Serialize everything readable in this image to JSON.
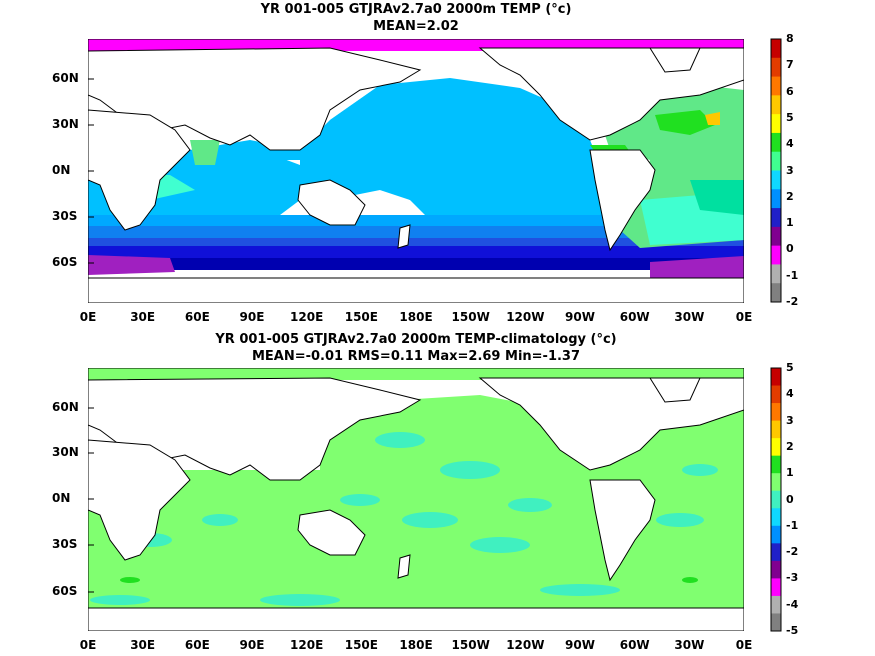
{
  "panels": [
    {
      "title_line1": "YR 001-005 GTJRAv2.7a0 2000m TEMP (°c)",
      "title_line2": "MEAN=2.02",
      "colorbar_labels": [
        "8",
        "7",
        "6",
        "5",
        "4",
        "3",
        "2",
        "1",
        "0",
        "-1",
        "-2"
      ],
      "colorbar_colors": [
        "#c60000",
        "#e23c00",
        "#ff7800",
        "#ffc800",
        "#ffff00",
        "#20e020",
        "#40ff90",
        "#10d8ff",
        "#0090ff",
        "#2020c8",
        "#800090",
        "#ff00ff",
        "#b0b0b0",
        "#808080"
      ]
    },
    {
      "title_line1": "YR 001-005 GTJRAv2.7a0 2000m TEMP-climatology (°c)",
      "title_line2": "MEAN=-0.01   RMS=0.11   Max=2.69   Min=-1.37",
      "colorbar_labels": [
        "5",
        "4",
        "3",
        "2",
        "1",
        "0",
        "-1",
        "-2",
        "-3",
        "-4",
        "-5"
      ],
      "colorbar_colors": [
        "#c60000",
        "#e23c00",
        "#ff7800",
        "#ffc800",
        "#ffff00",
        "#20e020",
        "#80ff70",
        "#40f0c0",
        "#10d8ff",
        "#0090ff",
        "#2020c8",
        "#800090",
        "#ff00ff",
        "#b0b0b0",
        "#808080"
      ]
    }
  ],
  "lat_labels": [
    "60N",
    "30N",
    "0N",
    "30S",
    "60S"
  ],
  "lon_labels": [
    "0E",
    "30E",
    "60E",
    "90E",
    "120E",
    "150E",
    "180E",
    "150W",
    "120W",
    "90W",
    "60W",
    "30W",
    "0E"
  ]
}
